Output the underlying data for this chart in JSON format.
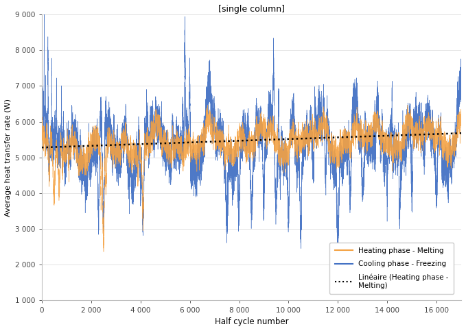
{
  "title": "[single column]",
  "xlabel": "Half cycle number",
  "ylabel": "Average heat transfer rate (W)",
  "xlim": [
    0,
    17000
  ],
  "ylim": [
    1000,
    9000
  ],
  "yticks": [
    1000,
    2000,
    3000,
    4000,
    5000,
    6000,
    7000,
    8000,
    9000
  ],
  "xticks": [
    0,
    2000,
    4000,
    6000,
    8000,
    10000,
    12000,
    14000,
    16000
  ],
  "xtick_labels": [
    "0",
    "2 000",
    "4 000",
    "6 000",
    "8 000",
    "10 000",
    "12 000",
    "14 000",
    "16 000"
  ],
  "ytick_labels": [
    "1 000",
    "2 000",
    "3 000",
    "4 000",
    "5 000",
    "6 000",
    "7 000",
    "8 000",
    "9 000"
  ],
  "heating_color": "#f4a243",
  "cooling_color": "#4472c4",
  "trend_color": "#000000",
  "trend_y_start": 5280,
  "trend_y_end": 5680,
  "legend_heating": "Heating phase - Melting",
  "legend_cooling": "Cooling phase - Freezing",
  "legend_trend": "Linéaire (Heating phase -\nMelting)",
  "n_points": 17000,
  "random_seed": 7
}
